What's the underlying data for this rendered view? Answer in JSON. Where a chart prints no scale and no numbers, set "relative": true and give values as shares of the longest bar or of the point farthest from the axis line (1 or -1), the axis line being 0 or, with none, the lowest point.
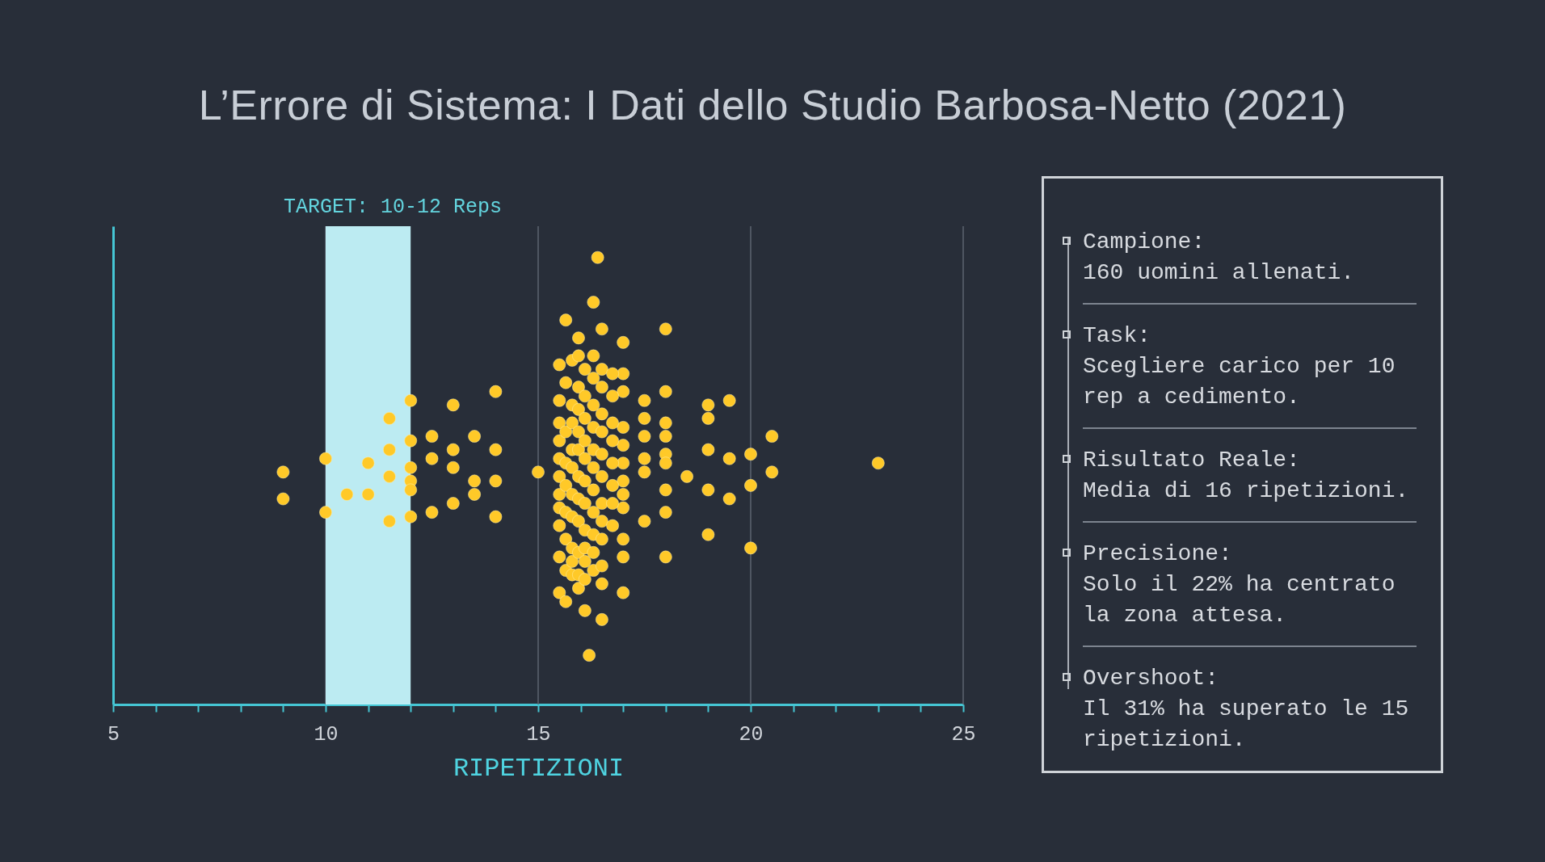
{
  "chart_data": {
    "type": "scatter",
    "title": "L’Errore di Sistema: I Dati dello Studio Barbosa-Netto (2021)",
    "xlabel": "RIPETIZIONI",
    "relative": true,
    "color": "#ffc928",
    "marker": "circle",
    "grid": "x",
    "tick_labels": "x",
    "xlim": [
      5,
      25
    ],
    "xticks": [
      5,
      {
        "value": 6,
        "label": null
      },
      {
        "value": 7,
        "label": null
      },
      {
        "value": 8,
        "label": null
      },
      {
        "value": 9,
        "label": null
      },
      10,
      {
        "value": 11,
        "label": null
      },
      {
        "value": 12,
        "label": null
      },
      {
        "value": 13,
        "label": null
      },
      {
        "value": 14,
        "label": null
      },
      15,
      {
        "value": 16,
        "label": null
      },
      {
        "value": 17,
        "label": null
      },
      {
        "value": 18,
        "label": null
      },
      {
        "value": 19,
        "label": null
      },
      20,
      {
        "value": 21,
        "label": null
      },
      {
        "value": 22,
        "label": null
      },
      {
        "value": 23,
        "label": null
      },
      {
        "value": 24,
        "label": null
      },
      25
    ],
    "bands": [
      {
        "axis": "x",
        "from": 10,
        "to": 12,
        "label": "TARGET: 10-12 Reps",
        "color": "#c4f5fc"
      }
    ],
    "x": [
      9,
      9,
      10,
      10,
      10.5,
      11,
      11,
      11.5,
      11.5,
      11.5,
      11.5,
      12,
      12,
      12,
      12,
      12,
      12,
      12.5,
      12.5,
      12.5,
      13,
      13,
      13,
      13,
      13.5,
      13.5,
      13.5,
      14,
      14,
      14,
      14,
      15,
      17.5,
      17.5,
      17.5,
      17.5,
      17.5,
      17.5,
      18,
      18,
      18,
      18,
      18,
      18,
      18,
      18,
      18,
      18.5,
      19,
      19,
      19,
      19,
      19,
      19.5,
      19.5,
      19.5,
      20,
      20,
      20,
      20.5,
      20.5,
      23,
      15.5,
      15.5,
      15.5,
      15.5,
      15.5,
      15.5,
      15.5,
      15.5,
      15.5,
      15.5,
      15.5,
      17,
      17,
      17,
      17,
      17,
      17,
      17,
      17,
      17,
      17,
      17,
      17,
      15.65,
      15.65,
      15.65,
      15.65,
      15.65,
      15.65,
      15.65,
      15.65,
      15.65,
      15.8,
      15.8,
      15.8,
      15.8,
      15.8,
      15.8,
      15.8,
      15.8,
      15.8,
      15.8,
      15.95,
      15.95,
      15.95,
      15.95,
      15.95,
      15.95,
      15.95,
      15.95,
      15.95,
      15.95,
      15.95,
      15.95,
      16.1,
      16.1,
      16.1,
      16.1,
      16.1,
      16.1,
      16.1,
      16.1,
      16.1,
      16.1,
      16.1,
      16.1,
      16.2,
      16.3,
      16.3,
      16.3,
      16.3,
      16.3,
      16.3,
      16.3,
      16.3,
      16.3,
      16.3,
      16.3,
      16.3,
      16.5,
      16.5,
      16.5,
      16.5,
      16.5,
      16.5,
      16.5,
      16.5,
      16.5,
      16.5,
      16.5,
      16.5,
      16.5,
      16.75,
      16.75,
      16.75,
      16.75,
      16.75,
      16.75,
      16.75,
      16.75,
      16.4
    ],
    "values": [
      0.52,
      0.46,
      0.55,
      0.43,
      0.47,
      0.54,
      0.47,
      0.64,
      0.57,
      0.51,
      0.41,
      0.68,
      0.59,
      0.53,
      0.5,
      0.48,
      0.42,
      0.6,
      0.55,
      0.43,
      0.67,
      0.57,
      0.53,
      0.45,
      0.6,
      0.5,
      0.47,
      0.7,
      0.57,
      0.5,
      0.42,
      0.52,
      0.68,
      0.64,
      0.6,
      0.55,
      0.52,
      0.41,
      0.84,
      0.7,
      0.63,
      0.6,
      0.56,
      0.54,
      0.48,
      0.43,
      0.33,
      0.51,
      0.67,
      0.64,
      0.57,
      0.48,
      0.38,
      0.68,
      0.55,
      0.46,
      0.56,
      0.49,
      0.35,
      0.6,
      0.52,
      0.54,
      0.76,
      0.68,
      0.63,
      0.59,
      0.55,
      0.51,
      0.47,
      0.44,
      0.4,
      0.33,
      0.25,
      0.81,
      0.74,
      0.7,
      0.62,
      0.58,
      0.54,
      0.5,
      0.47,
      0.44,
      0.37,
      0.33,
      0.25,
      0.86,
      0.72,
      0.61,
      0.54,
      0.49,
      0.43,
      0.37,
      0.3,
      0.23,
      0.77,
      0.67,
      0.63,
      0.57,
      0.53,
      0.47,
      0.42,
      0.35,
      0.32,
      0.29,
      0.82,
      0.78,
      0.71,
      0.66,
      0.61,
      0.57,
      0.51,
      0.46,
      0.41,
      0.34,
      0.29,
      0.26,
      0.75,
      0.69,
      0.64,
      0.59,
      0.55,
      0.5,
      0.45,
      0.39,
      0.35,
      0.32,
      0.28,
      0.21,
      0.11,
      0.9,
      0.78,
      0.73,
      0.67,
      0.62,
      0.57,
      0.53,
      0.48,
      0.43,
      0.38,
      0.34,
      0.3,
      0.84,
      0.75,
      0.71,
      0.65,
      0.61,
      0.56,
      0.51,
      0.45,
      0.41,
      0.37,
      0.31,
      0.27,
      0.19,
      0.74,
      0.69,
      0.63,
      0.59,
      0.54,
      0.49,
      0.45,
      0.4,
      1
    ],
    "annotations": [
      "Campione:",
      "160 uomini allenati.",
      "Task:",
      "Scegliere carico per 10 rep a cedimento.",
      "Risultato Reale:",
      "Media di 16 ripetizioni.",
      "Precisione:",
      "Solo il 22% ha centrato la zona attesa.",
      "Overshoot:",
      "Il 31% ha superato le 15 ripetizioni."
    ]
  }
}
